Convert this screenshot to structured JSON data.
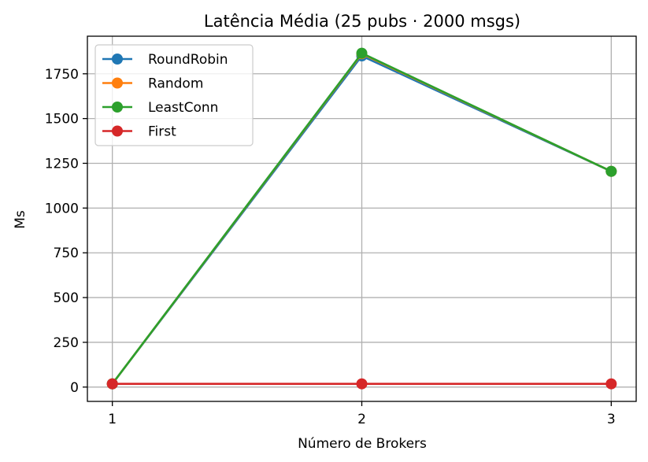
{
  "chart_data": {
    "type": "line",
    "title": "Latência Média (25 pubs · 2000 msgs)",
    "xlabel": "Número de Brokers",
    "ylabel": "Ms",
    "x": [
      1,
      2,
      3
    ],
    "x_ticks": [
      "1",
      "2",
      "3"
    ],
    "y_ticks": [
      "0",
      "250",
      "500",
      "750",
      "1000",
      "1250",
      "1500",
      "1750"
    ],
    "ylim": [
      -80,
      1960
    ],
    "xlim": [
      0.9,
      3.1
    ],
    "grid": true,
    "legend_position": "top-left",
    "series": [
      {
        "name": "RoundRobin",
        "color": "#1f77b4",
        "values": [
          18,
          1850,
          1205
        ]
      },
      {
        "name": "Random",
        "color": "#ff7f0e",
        "values": [
          18,
          1862,
          1205
        ]
      },
      {
        "name": "LeastConn",
        "color": "#2ca02c",
        "values": [
          18,
          1865,
          1205
        ]
      },
      {
        "name": "First",
        "color": "#d62728",
        "values": [
          18,
          18,
          18
        ]
      }
    ]
  }
}
